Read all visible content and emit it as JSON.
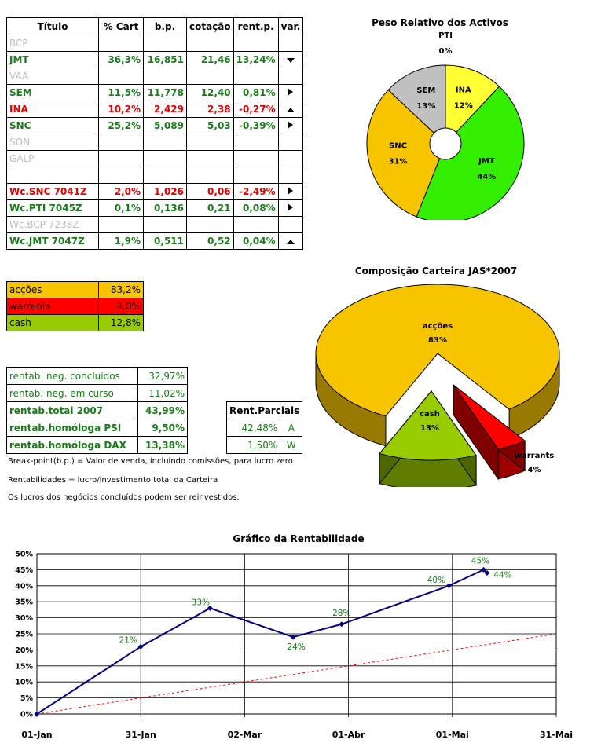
{
  "table": {
    "headers": [
      "Título",
      "% Cart",
      "b.p.",
      "cotação",
      "rent.p.",
      "var."
    ],
    "rows": [
      {
        "title": "BCP",
        "pct": "",
        "bp": "",
        "cot": "",
        "rent": "",
        "var": "",
        "style": "inactive"
      },
      {
        "title": "JMT",
        "pct": "36,3%",
        "bp": "16,851",
        "cot": "21,46",
        "rent": "13,24%",
        "var": "down",
        "style": "green"
      },
      {
        "title": "VAA",
        "pct": "",
        "bp": "",
        "cot": "",
        "rent": "",
        "var": "",
        "style": "inactive"
      },
      {
        "title": "SEM",
        "pct": "11,5%",
        "bp": "11,778",
        "cot": "12,40",
        "rent": "0,81%",
        "var": "right",
        "style": "green"
      },
      {
        "title": "INA",
        "pct": "10,2%",
        "bp": "2,429",
        "cot": "2,38",
        "rent": "-0,27%",
        "var": "up",
        "style": "red"
      },
      {
        "title": "SNC",
        "pct": "25,2%",
        "bp": "5,089",
        "cot": "5,03",
        "rent": "-0,39%",
        "var": "right",
        "style": "green"
      },
      {
        "title": "SON",
        "pct": "",
        "bp": "",
        "cot": "",
        "rent": "",
        "var": "",
        "style": "inactive"
      },
      {
        "title": "GALP",
        "pct": "",
        "bp": "",
        "cot": "",
        "rent": "",
        "var": "",
        "style": "inactive"
      },
      {
        "title": "",
        "pct": "",
        "bp": "",
        "cot": "",
        "rent": "",
        "var": "",
        "style": "inactive"
      },
      {
        "title": "Wc.SNC 7041Z",
        "pct": "2,0%",
        "bp": "1,026",
        "cot": "0,06",
        "rent": "-2,49%",
        "var": "right",
        "style": "red"
      },
      {
        "title": "Wc.PTI 7045Z",
        "pct": "0,1%",
        "bp": "0,136",
        "cot": "0,21",
        "rent": "0,08%",
        "var": "right",
        "style": "green"
      },
      {
        "title": "Wc.BCP 7238Z",
        "pct": "",
        "bp": "",
        "cot": "",
        "rent": "",
        "var": "",
        "style": "inactive"
      },
      {
        "title": "Wc.JMT 7047Z",
        "pct": "1,9%",
        "bp": "0,511",
        "cot": "0,52",
        "rent": "0,04%",
        "var": "up",
        "style": "green"
      }
    ]
  },
  "composition_table": [
    {
      "label": "acções",
      "value": "83,2%",
      "color": "#f7c400"
    },
    {
      "label": "warrants",
      "value": "4,0%",
      "color": "#ff0000"
    },
    {
      "label": "cash",
      "value": "12,8%",
      "color": "#99cc00"
    }
  ],
  "rentab_table": [
    {
      "label": "rentab. neg. concluídos",
      "value": "32,97%",
      "bold": false
    },
    {
      "label": "rentab. neg. em curso",
      "value": "11,02%",
      "bold": false
    },
    {
      "label": "rentab.total 2007",
      "value": "43,99%",
      "bold": true
    },
    {
      "label": "rentab.homóloga PSI",
      "value": "9,50%",
      "bold": true
    },
    {
      "label": "rentab.homóloga DAX",
      "value": "13,38%",
      "bold": true
    }
  ],
  "parciais": {
    "header": "Rent.Parciais",
    "rows": [
      {
        "value": "42,48%",
        "tag": "A"
      },
      {
        "value": "1,50%",
        "tag": "W"
      }
    ]
  },
  "notes": [
    "Break-point(b.p.) = Valor de venda, incluindo comissões, para lucro zero",
    "Rentabilidades = lucro/investimento total da Carteira",
    "Os lucros dos negócios concluídos podem ser reinvestidos."
  ],
  "colors": {
    "green_text": "#1a7a1a",
    "red_text": "#e00000",
    "pie_yellow": "#ffff33",
    "pie_green": "#33ee00",
    "pie_orange": "#f7c400",
    "pie_gray": "#c0c0c0",
    "line_navy": "#000080",
    "line_red": "#ff0000"
  },
  "chart_data": [
    {
      "type": "pie",
      "title": "Peso Relativo dos Activos",
      "slices": [
        {
          "label": "PTI",
          "value": 0,
          "text": "0%",
          "color": "#ffffff"
        },
        {
          "label": "INA",
          "value": 12,
          "text": "12%",
          "color": "#ffff33"
        },
        {
          "label": "JMT",
          "value": 44,
          "text": "44%",
          "color": "#33ee00"
        },
        {
          "label": "SNC",
          "value": 31,
          "text": "31%",
          "color": "#f7c400"
        },
        {
          "label": "SEM",
          "value": 13,
          "text": "13%",
          "color": "#c0c0c0"
        }
      ],
      "donut": true
    },
    {
      "type": "pie",
      "title": "Composição Carteira JAS*2007",
      "three_d": true,
      "slices": [
        {
          "label": "acções",
          "value": 83,
          "text": "83%",
          "color": "#f7c400"
        },
        {
          "label": "warrants",
          "value": 4,
          "text": "4%",
          "color": "#ff0000"
        },
        {
          "label": "cash",
          "value": 13,
          "text": "13%",
          "color": "#99cc00"
        }
      ]
    },
    {
      "type": "line",
      "title": "Gráfico da Rentabilidade",
      "x_tick_labels": [
        "01-Jan",
        "31-Jan",
        "02-Mar",
        "01-Abr",
        "01-Mai",
        "31-Mai"
      ],
      "y_tick_labels": [
        "0%",
        "5%",
        "10%",
        "15%",
        "20%",
        "25%",
        "30%",
        "35%",
        "40%",
        "45%",
        "50%"
      ],
      "xlim": [
        "2007-01-01",
        "2007-05-31"
      ],
      "ylim": [
        0,
        50
      ],
      "grid": true,
      "series": [
        {
          "color": "#000080",
          "points": [
            {
              "x": "2007-01-01",
              "y": 0,
              "label": ""
            },
            {
              "x": "2007-01-31",
              "y": 21,
              "label": "21%"
            },
            {
              "x": "2007-02-20",
              "y": 33,
              "label": "33%"
            },
            {
              "x": "2007-03-16",
              "y": 24,
              "label": "24%"
            },
            {
              "x": "2007-03-30",
              "y": 28,
              "label": "28%"
            },
            {
              "x": "2007-04-30",
              "y": 40,
              "label": "40%"
            },
            {
              "x": "2007-05-10",
              "y": 45,
              "label": "45%"
            },
            {
              "x": "2007-05-11",
              "y": 44,
              "label": "44%"
            }
          ]
        },
        {
          "color": "#ff0000",
          "dashed": true,
          "points": [
            {
              "x": "2007-01-01",
              "y": 0
            },
            {
              "x": "2007-05-31",
              "y": 25
            }
          ]
        }
      ]
    }
  ]
}
